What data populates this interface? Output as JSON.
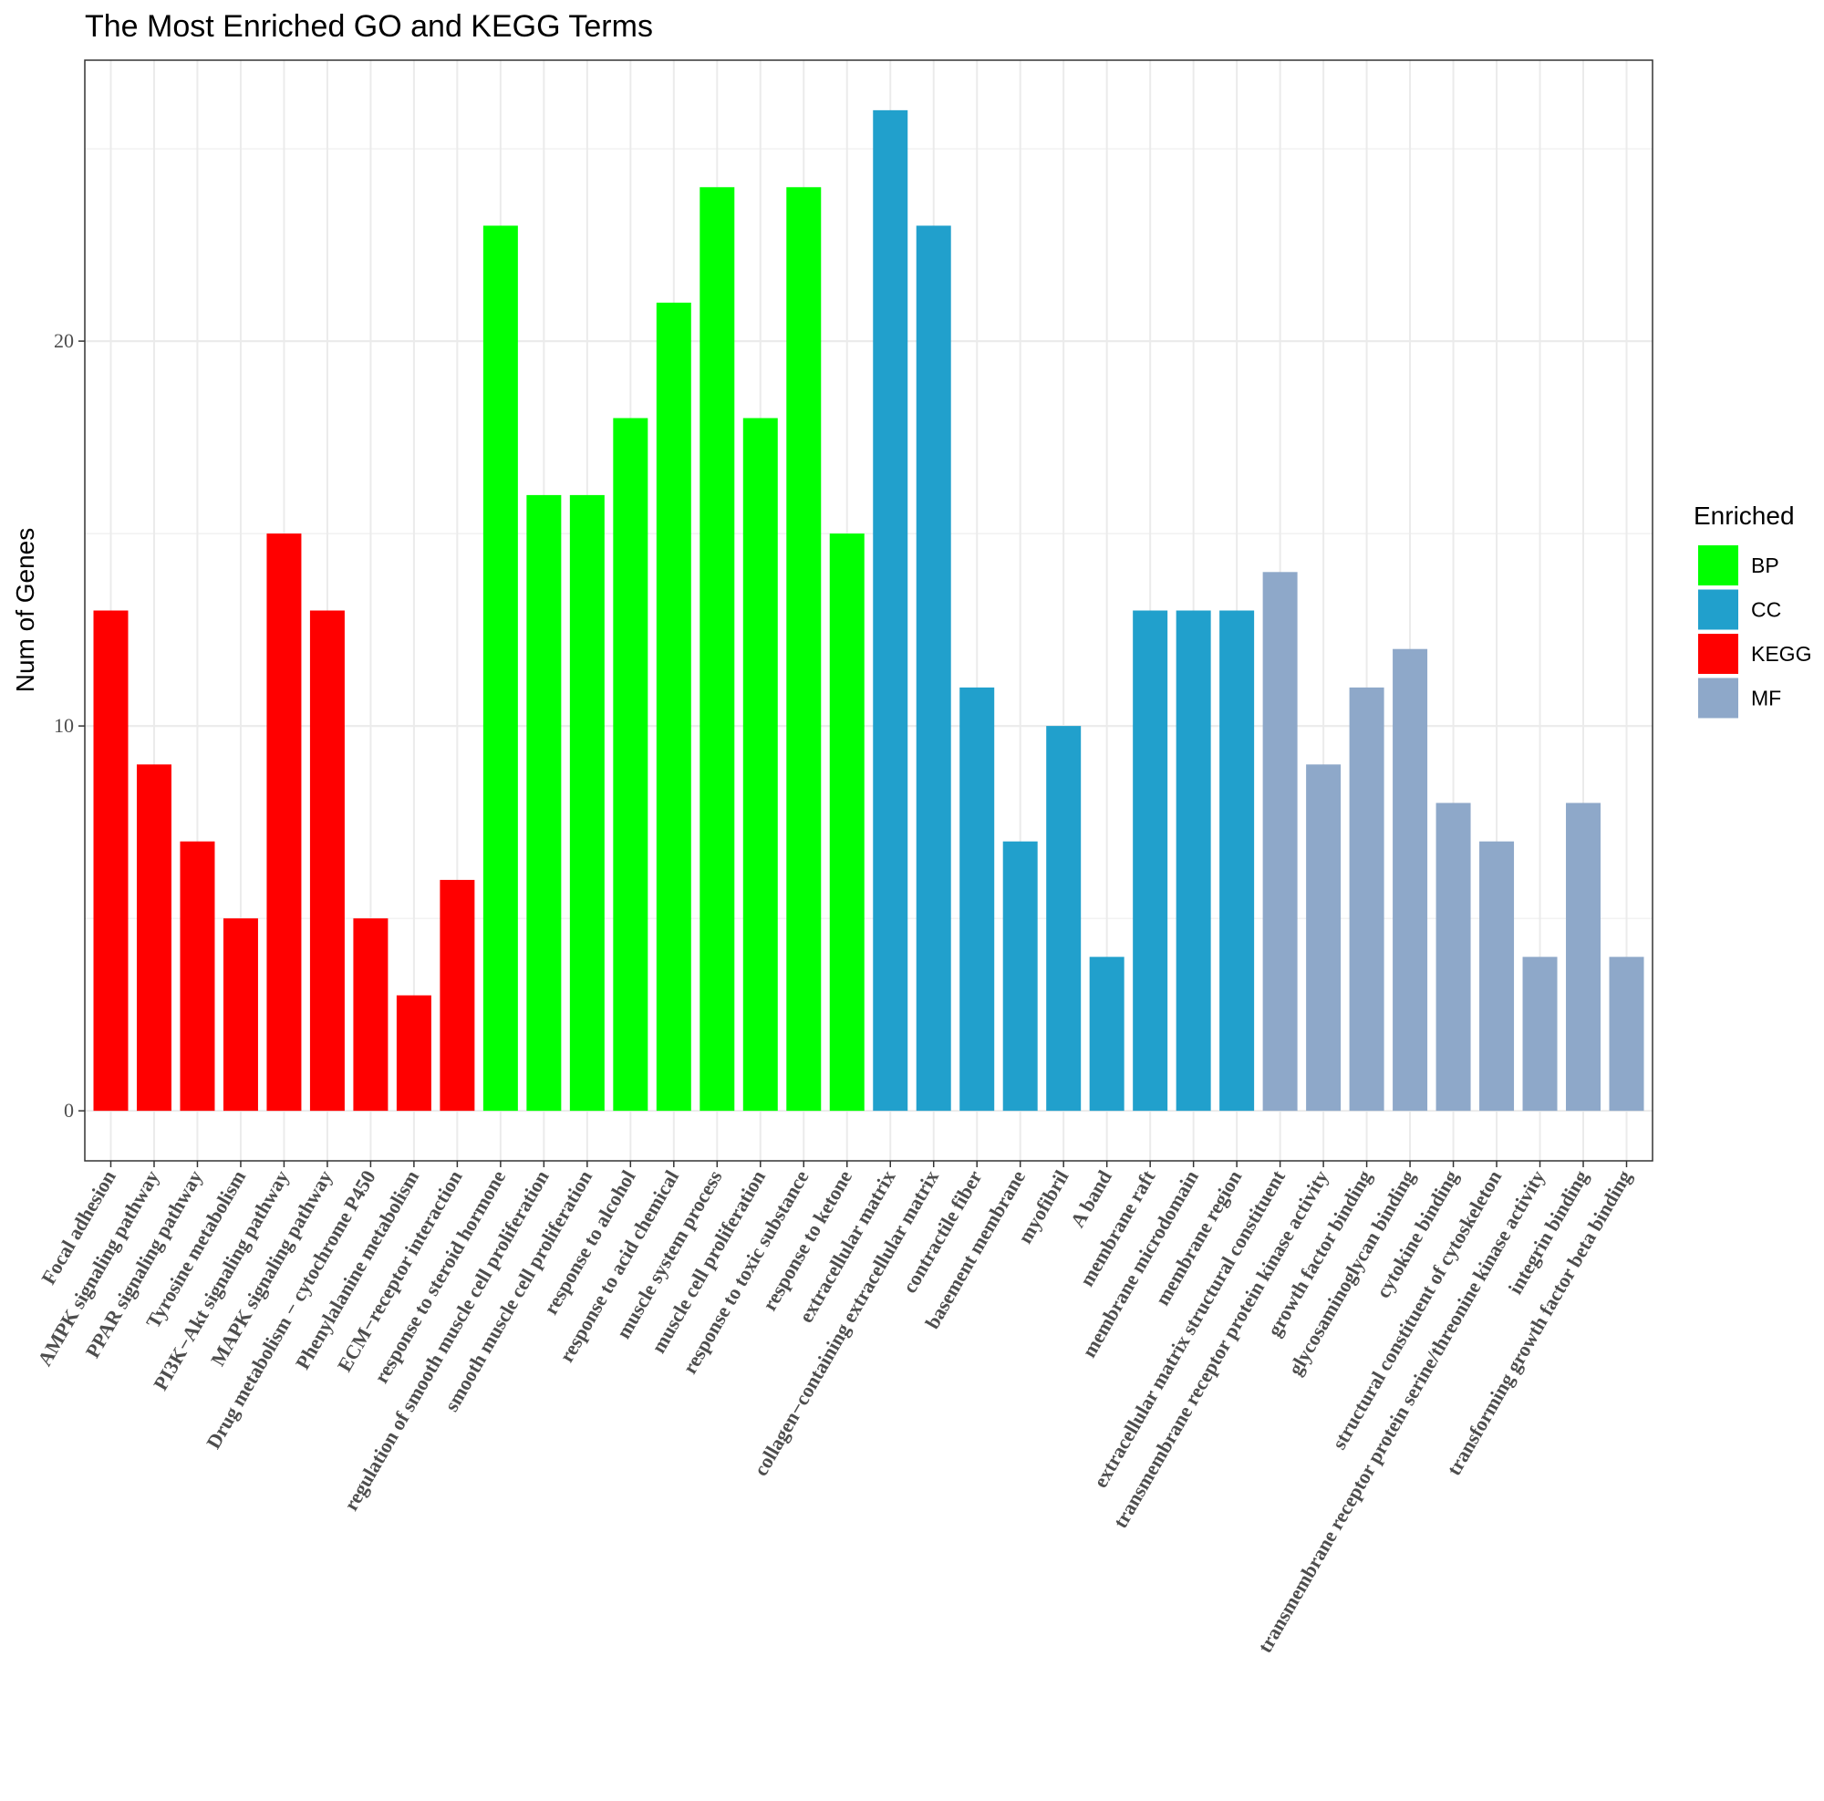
{
  "chart_data": {
    "type": "bar",
    "title": "The Most Enriched GO and KEGG Terms",
    "xlabel": "",
    "ylabel": "Num of Genes",
    "ylim": [
      -1.3,
      27.3
    ],
    "yticks": [
      0,
      10,
      20
    ],
    "grid": true,
    "legend": {
      "title": "Enriched",
      "position": "right",
      "entries": [
        {
          "name": "BP",
          "color": "#00FF00"
        },
        {
          "name": "CC",
          "color": "#21A0CC"
        },
        {
          "name": "KEGG",
          "color": "#FF0000"
        },
        {
          "name": "MF",
          "color": "#8EA8C9"
        }
      ]
    },
    "categories": [
      "Focal adhesion",
      "AMPK signaling pathway",
      "PPAR signaling pathway",
      "Tyrosine metabolism",
      "PI3K−Akt signaling pathway",
      "MAPK signaling pathway",
      "Drug metabolism − cytochrome P450",
      "Phenylalanine metabolism",
      "ECM−receptor interaction",
      "response to steroid hormone",
      "regulation of smooth muscle cell proliferation",
      "smooth muscle cell proliferation",
      "response to alcohol",
      "response to acid chemical",
      "muscle system process",
      "muscle cell proliferation",
      "response to toxic substance",
      "response to ketone",
      "extracellular matrix",
      "collagen−containing extracellular matrix",
      "contractile fiber",
      "basement membrane",
      "myofibril",
      "A band",
      "membrane raft",
      "membrane microdomain",
      "membrane region",
      "extracellular matrix structural constituent",
      "transmembrane receptor protein kinase activity",
      "growth factor binding",
      "glycosaminoglycan binding",
      "cytokine binding",
      "structural constituent of cytoskeleton",
      "transmembrane receptor protein serine/threonine kinase activity",
      "integrin binding",
      "transforming growth factor beta binding"
    ],
    "values": [
      13,
      9,
      7,
      5,
      15,
      13,
      5,
      3,
      6,
      23,
      16,
      16,
      18,
      21,
      24,
      18,
      24,
      15,
      26,
      23,
      11,
      7,
      10,
      4,
      13,
      13,
      13,
      14,
      9,
      11,
      12,
      8,
      7,
      4,
      8,
      4
    ],
    "groups": [
      "KEGG",
      "KEGG",
      "KEGG",
      "KEGG",
      "KEGG",
      "KEGG",
      "KEGG",
      "KEGG",
      "KEGG",
      "BP",
      "BP",
      "BP",
      "BP",
      "BP",
      "BP",
      "BP",
      "BP",
      "BP",
      "CC",
      "CC",
      "CC",
      "CC",
      "CC",
      "CC",
      "CC",
      "CC",
      "CC",
      "MF",
      "MF",
      "MF",
      "MF",
      "MF",
      "MF",
      "MF",
      "MF",
      "MF"
    ]
  }
}
